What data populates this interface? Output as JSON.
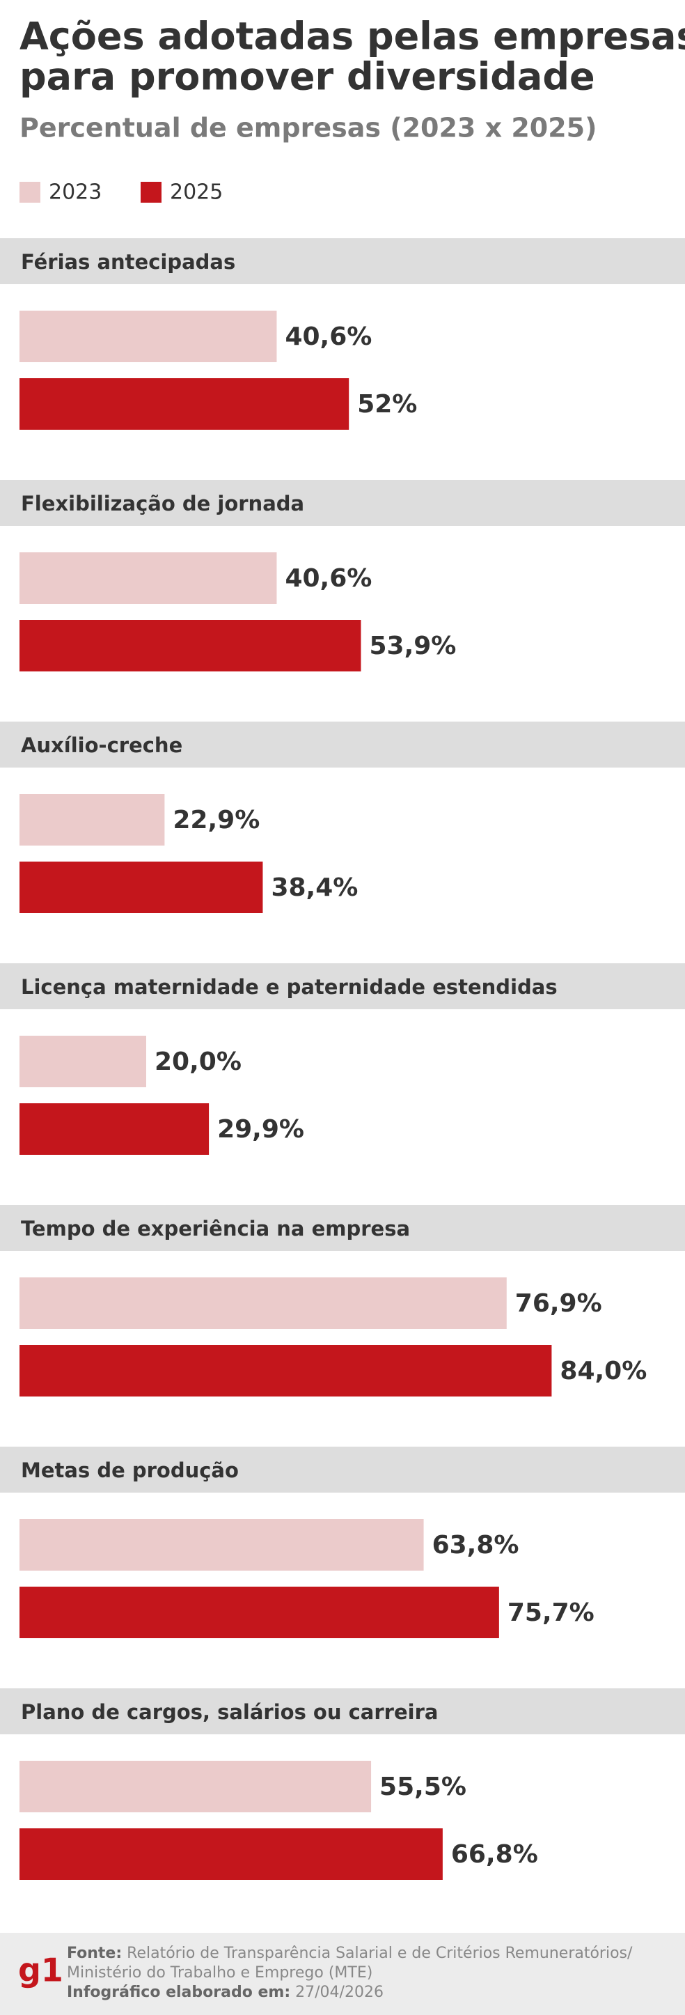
{
  "chart_data": {
    "type": "bar",
    "orientation": "horizontal",
    "title": [
      "Ações adotadas pelas empresas",
      "para promover diversidade"
    ],
    "subtitle": "Percentual de empresas (2023 x 2025)",
    "categories": [
      "Férias antecipadas",
      "Flexibilização de jornada",
      "Auxílio-creche",
      "Licença maternidade e paternidade estendidas",
      "Tempo de experiência na empresa",
      "Metas de produção",
      "Plano de cargos, salários ou carreira"
    ],
    "series": [
      {
        "name": "2023",
        "color": "#ebcbcb",
        "values": [
          40.6,
          40.6,
          22.9,
          20.0,
          76.9,
          63.8,
          55.5
        ],
        "value_labels": [
          "40,6%",
          "40,6%",
          "22,9%",
          "20,0%",
          "76,9%",
          "63,8%",
          "55,5%"
        ]
      },
      {
        "name": "2025",
        "color": "#c4161c",
        "values": [
          52,
          53.9,
          38.4,
          29.9,
          84.0,
          75.7,
          66.8
        ],
        "value_labels": [
          "52%",
          "53,9%",
          "38,4%",
          "29,9%",
          "84,0%",
          "75,7%",
          "66,8%"
        ]
      }
    ],
    "legend": "top-left"
  },
  "footer": {
    "logo": "g1",
    "source_label": "Fonte:",
    "source_lines": [
      "Relatório de Transparência Salarial e de Critérios Remuneratórios/",
      "Ministério do Trabalho e Emprego (MTE)"
    ],
    "date_label": "Infográfico elaborado em:",
    "date": "27/04/2026"
  }
}
